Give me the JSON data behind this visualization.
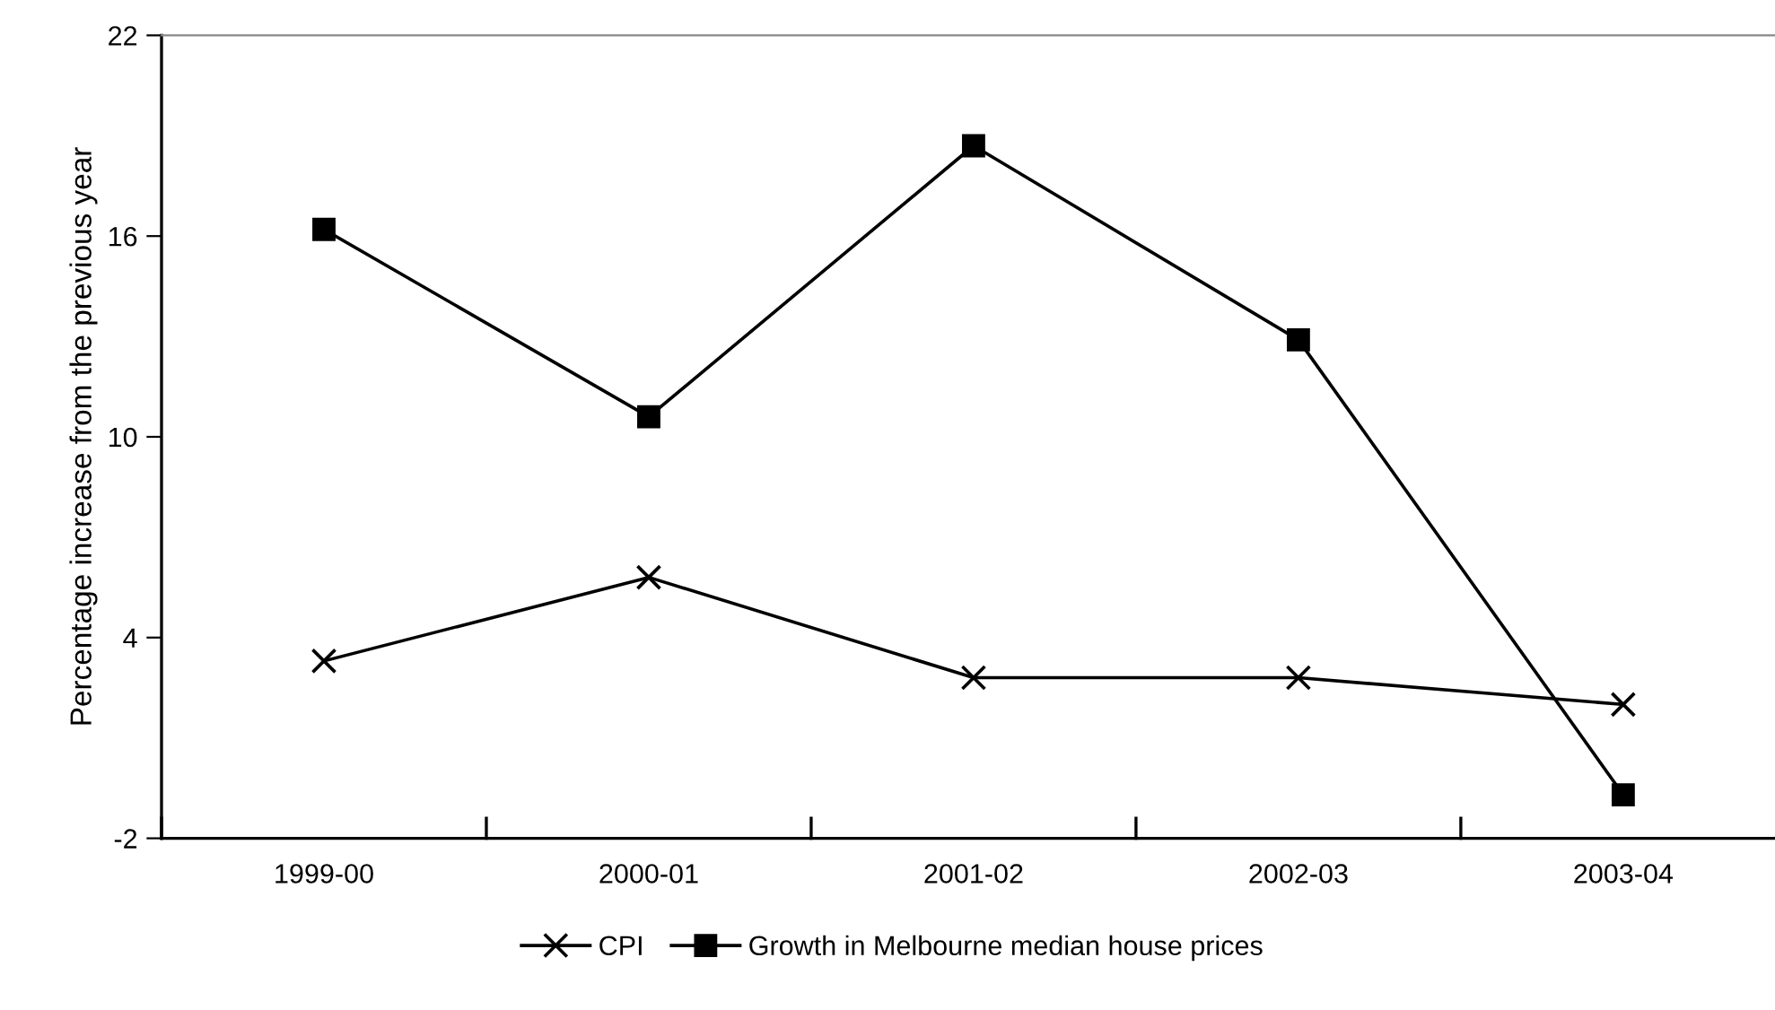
{
  "chart_data": {
    "type": "line",
    "ylabel": "Percentage increase from the previous year",
    "categories": [
      "1999-00",
      "2000-01",
      "2001-02",
      "2002-03",
      "2003-04"
    ],
    "series": [
      {
        "name": "CPI",
        "color": "#000000",
        "marker": "cross",
        "values": [
          3.3,
          5.8,
          2.8,
          2.8,
          2.0
        ]
      },
      {
        "name": "Growth in Melbourne median house prices",
        "color": "#000000",
        "marker": "square",
        "values": [
          16.2,
          10.6,
          18.7,
          12.9,
          -0.7
        ]
      }
    ],
    "ylim": [
      -2,
      22
    ],
    "yticks": [
      -2,
      4,
      10,
      16,
      22
    ],
    "legend": "bottom",
    "line_style": "solid"
  }
}
